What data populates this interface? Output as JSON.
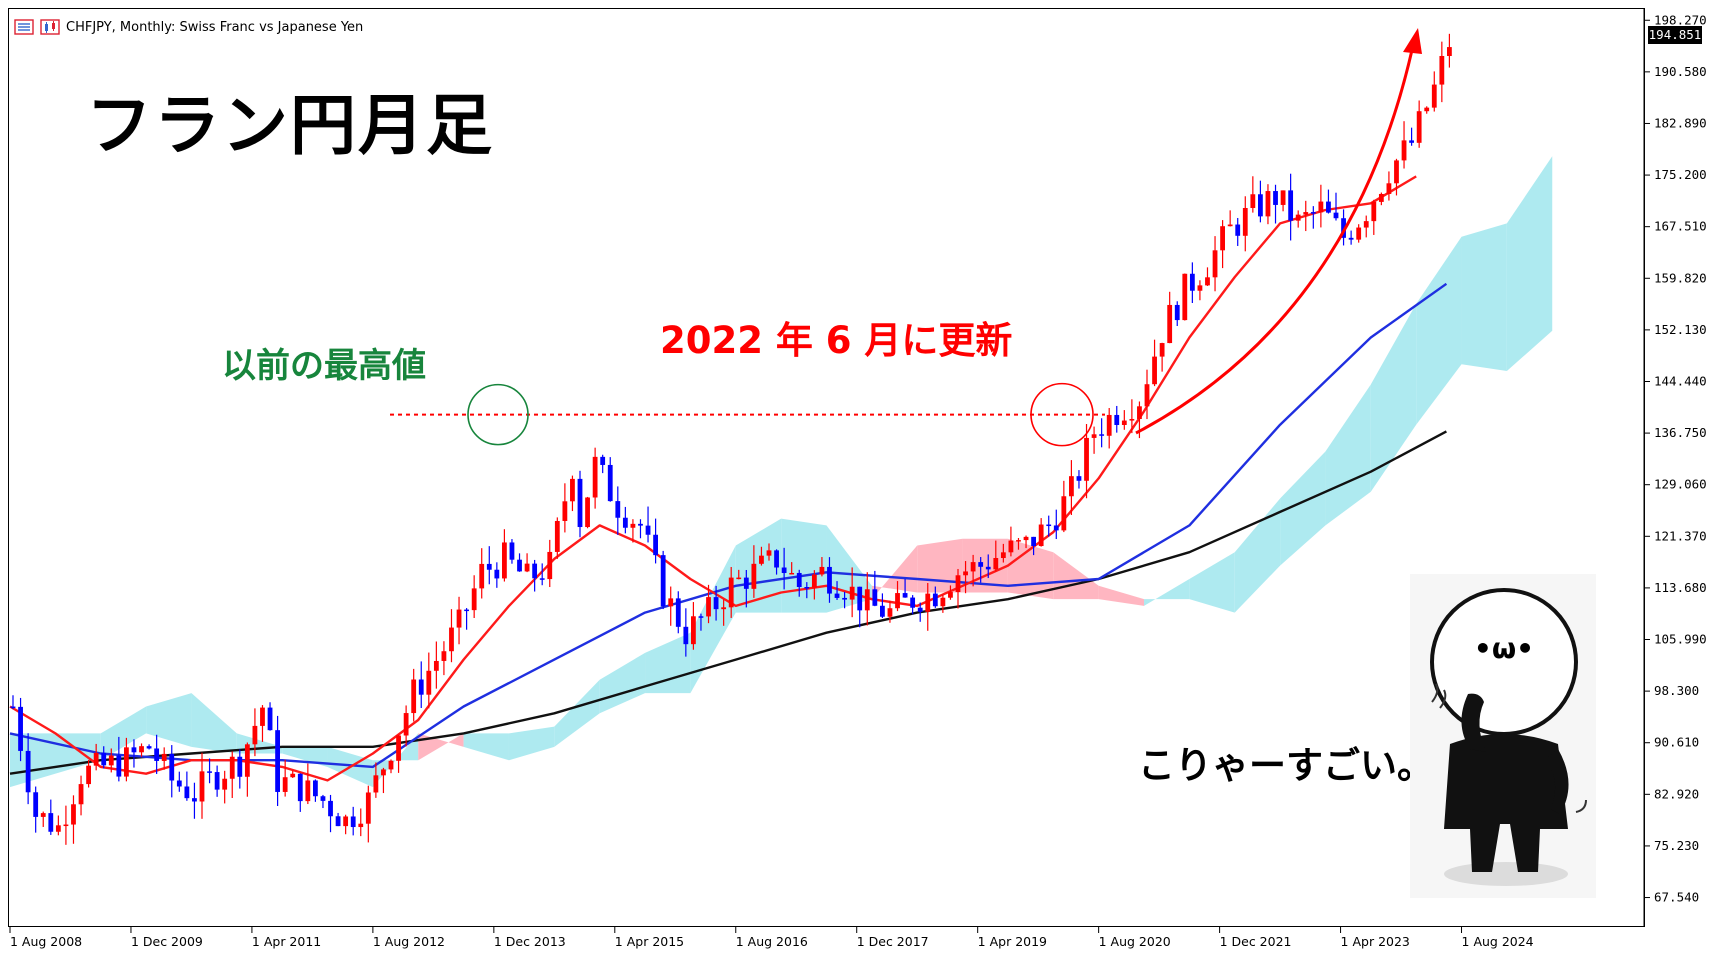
{
  "header": {
    "symbol_text": "CHFJPY, Monthly:  Swiss Franc vs Japanese Yen"
  },
  "annotations": {
    "title": "フラン円月足",
    "previous_high_label": "以前の最高値",
    "update_label": "2022 年 6 月に更新",
    "comment": "こりゃーすごい。",
    "mascot_face": "•ω•"
  },
  "current_price": "194.851",
  "colors": {
    "bull_candle": "#ff0000",
    "bear_candle": "#0000ff",
    "ma_red": "#ff1a1a",
    "ma_blue": "#1f2fe0",
    "ma_black": "#111111",
    "cloud_bear": "#ffb6c1",
    "cloud_bull": "#aeeaf0",
    "prev_high_marker": "#17853c",
    "update_marker": "#ff0000"
  },
  "chart_data": {
    "type": "candlestick",
    "y_axis": {
      "ticks": [
        "198.270",
        "190.580",
        "182.890",
        "175.200",
        "167.510",
        "159.820",
        "152.130",
        "144.440",
        "136.750",
        "129.060",
        "121.370",
        "113.680",
        "105.990",
        "98.300",
        "90.610",
        "82.920",
        "75.230",
        "67.540"
      ],
      "range": [
        63.0,
        199.5
      ]
    },
    "x_axis": {
      "ticks": [
        "1 Aug 2008",
        "1 Dec 2009",
        "1 Apr 2011",
        "1 Aug 2012",
        "1 Dec 2013",
        "1 Apr 2015",
        "1 Aug 2016",
        "1 Dec 2017",
        "1 Apr 2019",
        "1 Aug 2020",
        "1 Dec 2021",
        "1 Apr 2023",
        "1 Aug 2024"
      ],
      "start_date": "2008-08",
      "months_shown": 204
    },
    "price_path": [
      [
        0,
        96
      ],
      [
        3,
        80
      ],
      [
        6,
        78
      ],
      [
        9,
        86
      ],
      [
        12,
        87
      ],
      [
        15,
        88
      ],
      [
        18,
        90
      ],
      [
        21,
        85
      ],
      [
        24,
        83
      ],
      [
        27,
        86
      ],
      [
        30,
        88
      ],
      [
        33,
        96
      ],
      [
        35,
        85
      ],
      [
        38,
        84
      ],
      [
        41,
        82
      ],
      [
        44,
        79
      ],
      [
        47,
        82
      ],
      [
        50,
        90
      ],
      [
        53,
        98
      ],
      [
        56,
        103
      ],
      [
        59,
        108
      ],
      [
        62,
        116
      ],
      [
        65,
        118
      ],
      [
        68,
        115
      ],
      [
        71,
        117
      ],
      [
        74,
        132
      ],
      [
        75,
        124
      ],
      [
        77,
        132
      ],
      [
        80,
        126
      ],
      [
        83,
        123
      ],
      [
        86,
        113
      ],
      [
        89,
        107
      ],
      [
        92,
        110
      ],
      [
        95,
        114
      ],
      [
        98,
        116
      ],
      [
        101,
        118
      ],
      [
        104,
        114
      ],
      [
        107,
        116
      ],
      [
        110,
        114
      ],
      [
        113,
        111
      ],
      [
        116,
        110
      ],
      [
        119,
        112
      ],
      [
        122,
        113
      ],
      [
        125,
        116
      ],
      [
        128,
        117
      ],
      [
        131,
        119
      ],
      [
        134,
        120
      ],
      [
        137,
        123
      ],
      [
        140,
        128
      ],
      [
        143,
        137
      ],
      [
        146,
        140
      ],
      [
        149,
        142
      ],
      [
        152,
        152
      ],
      [
        155,
        158
      ],
      [
        158,
        162
      ],
      [
        161,
        167
      ],
      [
        164,
        170
      ],
      [
        167,
        172
      ],
      [
        170,
        168
      ],
      [
        173,
        170
      ],
      [
        176,
        166
      ],
      [
        179,
        170
      ],
      [
        182,
        176
      ],
      [
        185,
        180
      ],
      [
        188,
        188
      ],
      [
        190,
        195
      ]
    ],
    "previous_high": {
      "value": 139.5,
      "date": "2014-12"
    },
    "update_date": "2022-06",
    "ma_red_path": [
      [
        0,
        96
      ],
      [
        6,
        92
      ],
      [
        12,
        87
      ],
      [
        18,
        86
      ],
      [
        24,
        88
      ],
      [
        30,
        88
      ],
      [
        36,
        87
      ],
      [
        42,
        85
      ],
      [
        48,
        89
      ],
      [
        54,
        94
      ],
      [
        60,
        103
      ],
      [
        66,
        111
      ],
      [
        72,
        118
      ],
      [
        78,
        123
      ],
      [
        84,
        120
      ],
      [
        90,
        115
      ],
      [
        96,
        111
      ],
      [
        102,
        113
      ],
      [
        108,
        114
      ],
      [
        114,
        112
      ],
      [
        120,
        111
      ],
      [
        126,
        114
      ],
      [
        132,
        117
      ],
      [
        138,
        122
      ],
      [
        144,
        130
      ],
      [
        150,
        140
      ],
      [
        156,
        151
      ],
      [
        162,
        160
      ],
      [
        168,
        168
      ],
      [
        174,
        170
      ],
      [
        180,
        171
      ],
      [
        186,
        175
      ]
    ],
    "ma_blue_path": [
      [
        0,
        92
      ],
      [
        12,
        89
      ],
      [
        24,
        88
      ],
      [
        36,
        88
      ],
      [
        48,
        87
      ],
      [
        60,
        96
      ],
      [
        72,
        103
      ],
      [
        84,
        110
      ],
      [
        96,
        114
      ],
      [
        108,
        116
      ],
      [
        120,
        115
      ],
      [
        132,
        114
      ],
      [
        144,
        115
      ],
      [
        156,
        123
      ],
      [
        168,
        138
      ],
      [
        180,
        151
      ],
      [
        190,
        159
      ]
    ],
    "ma_black_path": [
      [
        0,
        86
      ],
      [
        12,
        88
      ],
      [
        24,
        89
      ],
      [
        36,
        90
      ],
      [
        48,
        90
      ],
      [
        60,
        92
      ],
      [
        72,
        95
      ],
      [
        84,
        99
      ],
      [
        96,
        103
      ],
      [
        108,
        107
      ],
      [
        120,
        110
      ],
      [
        132,
        112
      ],
      [
        144,
        115
      ],
      [
        156,
        119
      ],
      [
        168,
        125
      ],
      [
        180,
        131
      ],
      [
        190,
        137
      ]
    ],
    "cloud_path": [
      {
        "m": 0,
        "a": 92,
        "b": 84
      },
      {
        "m": 12,
        "a": 92,
        "b": 88
      },
      {
        "m": 18,
        "a": 96,
        "b": 92
      },
      {
        "m": 24,
        "a": 98,
        "b": 90
      },
      {
        "m": 30,
        "a": 92,
        "b": 89
      },
      {
        "m": 36,
        "a": 90,
        "b": 89
      },
      {
        "m": 42,
        "a": 90,
        "b": 87
      },
      {
        "m": 48,
        "a": 88,
        "b": 84
      },
      {
        "m": 54,
        "a": 88,
        "b": 92
      },
      {
        "m": 60,
        "a": 92,
        "b": 90
      },
      {
        "m": 66,
        "a": 92,
        "b": 88
      },
      {
        "m": 72,
        "a": 93,
        "b": 90
      },
      {
        "m": 78,
        "a": 100,
        "b": 95
      },
      {
        "m": 84,
        "a": 104,
        "b": 98
      },
      {
        "m": 90,
        "a": 107,
        "b": 98
      },
      {
        "m": 96,
        "a": 120,
        "b": 110
      },
      {
        "m": 102,
        "a": 124,
        "b": 110
      },
      {
        "m": 108,
        "a": 123,
        "b": 110
      },
      {
        "m": 114,
        "a": 114,
        "b": 112
      },
      {
        "m": 120,
        "a": 113,
        "b": 120
      },
      {
        "m": 126,
        "a": 113,
        "b": 121
      },
      {
        "m": 132,
        "a": 113,
        "b": 121
      },
      {
        "m": 138,
        "a": 112,
        "b": 119
      },
      {
        "m": 144,
        "a": 112,
        "b": 114
      },
      {
        "m": 150,
        "a": 111,
        "b": 112
      },
      {
        "m": 156,
        "a": 115,
        "b": 112
      },
      {
        "m": 162,
        "a": 119,
        "b": 110
      },
      {
        "m": 168,
        "a": 127,
        "b": 117
      },
      {
        "m": 174,
        "a": 134,
        "b": 123
      },
      {
        "m": 180,
        "a": 144,
        "b": 128
      },
      {
        "m": 186,
        "a": 156,
        "b": 138
      },
      {
        "m": 192,
        "a": 166,
        "b": 147
      },
      {
        "m": 198,
        "a": 168,
        "b": 146
      },
      {
        "m": 204,
        "a": 178,
        "b": 152
      }
    ]
  }
}
